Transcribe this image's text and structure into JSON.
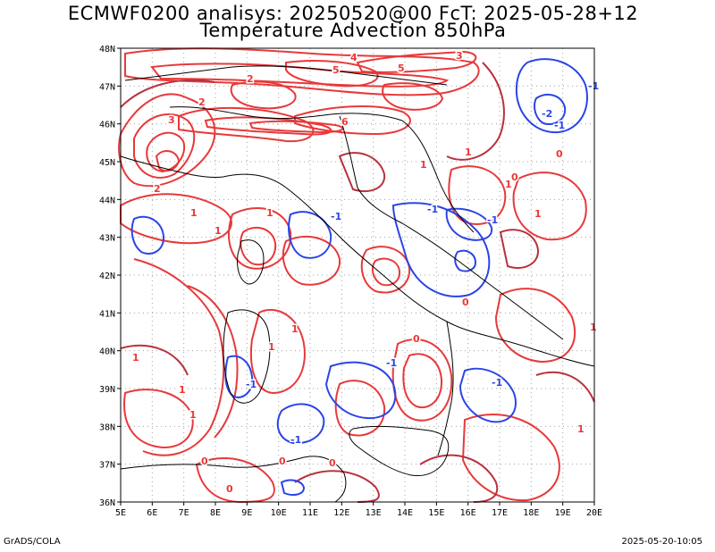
{
  "title_line1": "ECMWF0200 analisys: 20250520@00 FcT: 2025-05-28+12",
  "title_line2": "Temperature Advection 850hPa",
  "footer_left": "GrADS/COLA",
  "footer_right": "2025-05-20-10:05",
  "axes": {
    "lon_labels": [
      "5E",
      "6E",
      "7E",
      "8E",
      "9E",
      "10E",
      "11E",
      "12E",
      "13E",
      "14E",
      "15E",
      "16E",
      "17E",
      "18E",
      "19E",
      "20E"
    ],
    "lat_labels": [
      "48N",
      "47N",
      "46N",
      "45N",
      "44N",
      "43N",
      "42N",
      "41N",
      "40N",
      "39N",
      "38N",
      "37N",
      "36N"
    ],
    "lon_range": [
      5,
      20
    ],
    "lat_range": [
      36,
      48
    ]
  },
  "colors": {
    "positive_contour": "#e8393a",
    "positive_contour_dark": "#b8323e",
    "negative_contour": "#2b45e6",
    "coastline": "#000000",
    "grid": "#a0a0a0"
  },
  "contour_labels": {
    "positive": [
      "1",
      "2",
      "3",
      "4",
      "5",
      "6",
      "0"
    ],
    "negative": [
      "-1",
      "-2"
    ]
  }
}
